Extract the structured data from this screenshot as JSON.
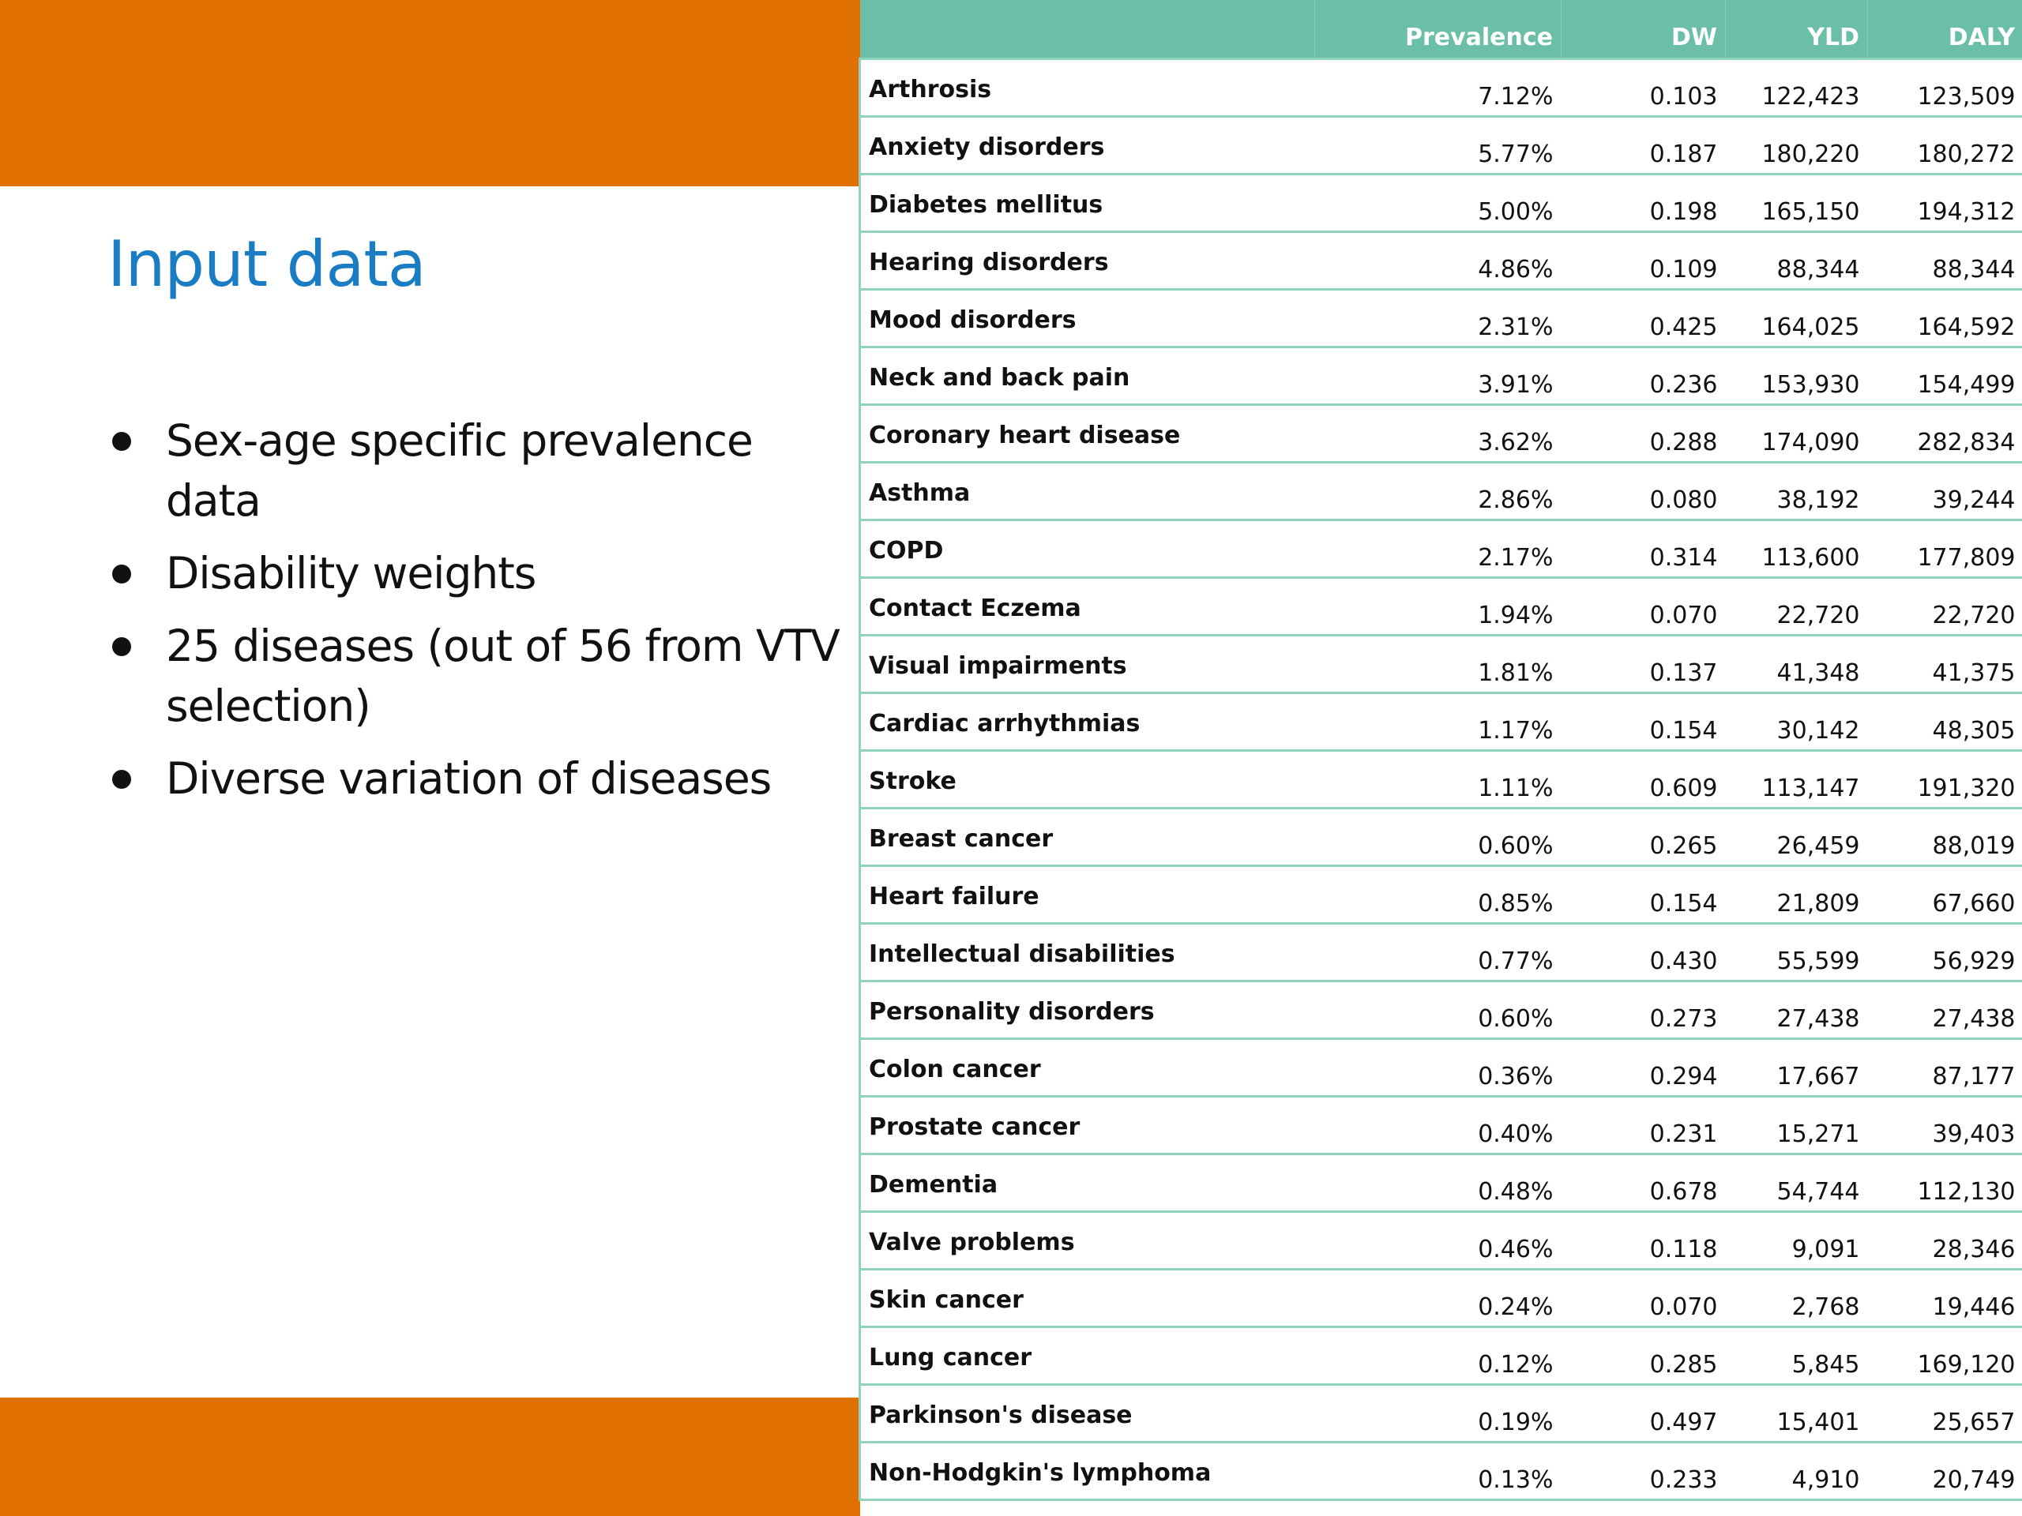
{
  "slide": {
    "title": "Input data",
    "bullets": [
      "Sex-age specific prevalence data",
      "Disability weights",
      "25 diseases (out of 56 from VTV selection)",
      "Diverse variation of diseases"
    ],
    "accent_color": "#e07000",
    "title_color": "#1a7dc4"
  },
  "table": {
    "header_color": "#6bbfa6",
    "columns": [
      "",
      "Prevalence",
      "DW",
      "YLD",
      "DALY"
    ],
    "rows": [
      {
        "disease": "Arthrosis",
        "prevalence": "7.12%",
        "dw": "0.103",
        "yld": "122,423",
        "daly": "123,509"
      },
      {
        "disease": "Anxiety disorders",
        "prevalence": "5.77%",
        "dw": "0.187",
        "yld": "180,220",
        "daly": "180,272"
      },
      {
        "disease": "Diabetes mellitus",
        "prevalence": "5.00%",
        "dw": "0.198",
        "yld": "165,150",
        "daly": "194,312"
      },
      {
        "disease": "Hearing disorders",
        "prevalence": "4.86%",
        "dw": "0.109",
        "yld": "88,344",
        "daly": "88,344"
      },
      {
        "disease": "Mood disorders",
        "prevalence": "2.31%",
        "dw": "0.425",
        "yld": "164,025",
        "daly": "164,592"
      },
      {
        "disease": "Neck and back pain",
        "prevalence": "3.91%",
        "dw": "0.236",
        "yld": "153,930",
        "daly": "154,499"
      },
      {
        "disease": "Coronary heart disease",
        "prevalence": "3.62%",
        "dw": "0.288",
        "yld": "174,090",
        "daly": "282,834"
      },
      {
        "disease": "Asthma",
        "prevalence": "2.86%",
        "dw": "0.080",
        "yld": "38,192",
        "daly": "39,244"
      },
      {
        "disease": "COPD",
        "prevalence": "2.17%",
        "dw": "0.314",
        "yld": "113,600",
        "daly": "177,809"
      },
      {
        "disease": "Contact Eczema",
        "prevalence": "1.94%",
        "dw": "0.070",
        "yld": "22,720",
        "daly": "22,720"
      },
      {
        "disease": "Visual impairments",
        "prevalence": "1.81%",
        "dw": "0.137",
        "yld": "41,348",
        "daly": "41,375"
      },
      {
        "disease": "Cardiac arrhythmias",
        "prevalence": "1.17%",
        "dw": "0.154",
        "yld": "30,142",
        "daly": "48,305"
      },
      {
        "disease": "Stroke",
        "prevalence": "1.11%",
        "dw": "0.609",
        "yld": "113,147",
        "daly": "191,320"
      },
      {
        "disease": "Breast cancer",
        "prevalence": "0.60%",
        "dw": "0.265",
        "yld": "26,459",
        "daly": "88,019"
      },
      {
        "disease": "Heart failure",
        "prevalence": "0.85%",
        "dw": "0.154",
        "yld": "21,809",
        "daly": "67,660"
      },
      {
        "disease": "Intellectual disabilities",
        "prevalence": "0.77%",
        "dw": "0.430",
        "yld": "55,599",
        "daly": "56,929"
      },
      {
        "disease": "Personality disorders",
        "prevalence": "0.60%",
        "dw": "0.273",
        "yld": "27,438",
        "daly": "27,438"
      },
      {
        "disease": "Colon cancer",
        "prevalence": "0.36%",
        "dw": "0.294",
        "yld": "17,667",
        "daly": "87,177"
      },
      {
        "disease": "Prostate cancer",
        "prevalence": "0.40%",
        "dw": "0.231",
        "yld": "15,271",
        "daly": "39,403"
      },
      {
        "disease": "Dementia",
        "prevalence": "0.48%",
        "dw": "0.678",
        "yld": "54,744",
        "daly": "112,130"
      },
      {
        "disease": "Valve problems",
        "prevalence": "0.46%",
        "dw": "0.118",
        "yld": "9,091",
        "daly": "28,346"
      },
      {
        "disease": "Skin cancer",
        "prevalence": "0.24%",
        "dw": "0.070",
        "yld": "2,768",
        "daly": "19,446"
      },
      {
        "disease": "Lung cancer",
        "prevalence": "0.12%",
        "dw": "0.285",
        "yld": "5,845",
        "daly": "169,120"
      },
      {
        "disease": "Parkinson's disease",
        "prevalence": "0.19%",
        "dw": "0.497",
        "yld": "15,401",
        "daly": "25,657"
      },
      {
        "disease": "Non-Hodgkin's lymphoma",
        "prevalence": "0.13%",
        "dw": "0.233",
        "yld": "4,910",
        "daly": "20,749"
      }
    ]
  }
}
